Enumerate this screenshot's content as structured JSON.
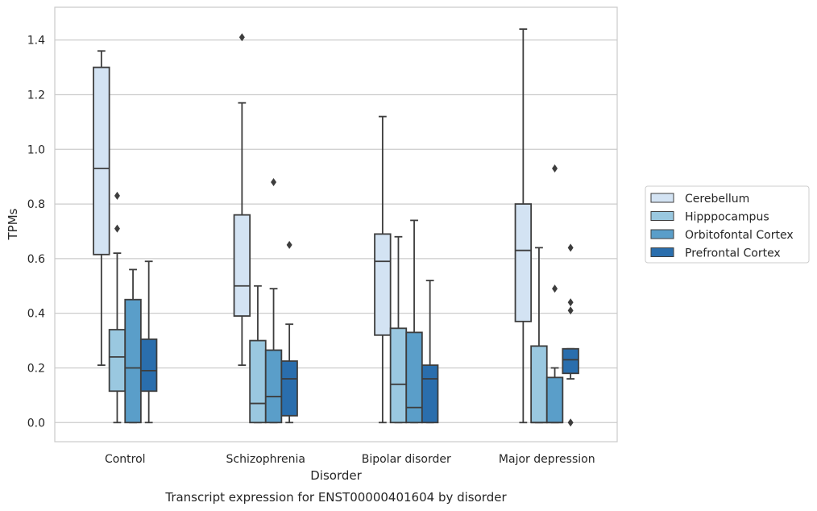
{
  "colors": {
    "background": "#ffffff",
    "grid": "#cccccc",
    "frame": "#cccccc",
    "box_edge": "#3d3d3d",
    "text": "#262626"
  },
  "chart_data": {
    "type": "box",
    "title": "",
    "caption": "Transcript expression for ENST00000401604 by disorder",
    "xlabel": "Disorder",
    "ylabel": "TPMs",
    "ylim": [
      -0.07,
      1.52
    ],
    "yticks": [
      0.0,
      0.2,
      0.4,
      0.6,
      0.8,
      1.0,
      1.2,
      1.4
    ],
    "ytick_labels": [
      "0.0",
      "0.2",
      "0.4",
      "0.6",
      "0.8",
      "1.0",
      "1.2",
      "1.4"
    ],
    "grid": "horizontal",
    "legend_position": "right",
    "categories": [
      "Control",
      "Schizophrenia",
      "Bipolar disorder",
      "Major depression"
    ],
    "series": [
      {
        "name": "Cerebellum",
        "color": "#d3e3f3",
        "boxes": [
          {
            "whisker_low": 0.21,
            "q1": 0.615,
            "median": 0.93,
            "q3": 1.3,
            "whisker_high": 1.36,
            "outliers": []
          },
          {
            "whisker_low": 0.21,
            "q1": 0.39,
            "median": 0.5,
            "q3": 0.76,
            "whisker_high": 1.17,
            "outliers": [
              1.41
            ]
          },
          {
            "whisker_low": 0.0,
            "q1": 0.32,
            "median": 0.59,
            "q3": 0.69,
            "whisker_high": 1.12,
            "outliers": []
          },
          {
            "whisker_low": 0.0,
            "q1": 0.37,
            "median": 0.63,
            "q3": 0.8,
            "whisker_high": 1.44,
            "outliers": []
          }
        ]
      },
      {
        "name": "Hipppocampus",
        "color": "#9ac8e0",
        "boxes": [
          {
            "whisker_low": 0.0,
            "q1": 0.115,
            "median": 0.24,
            "q3": 0.34,
            "whisker_high": 0.62,
            "outliers": [
              0.71,
              0.83
            ]
          },
          {
            "whisker_low": 0.0,
            "q1": 0.0,
            "median": 0.07,
            "q3": 0.3,
            "whisker_high": 0.5,
            "outliers": []
          },
          {
            "whisker_low": 0.0,
            "q1": 0.0,
            "median": 0.14,
            "q3": 0.345,
            "whisker_high": 0.68,
            "outliers": []
          },
          {
            "whisker_low": 0.0,
            "q1": 0.0,
            "median": 0.0,
            "q3": 0.28,
            "whisker_high": 0.64,
            "outliers": []
          }
        ]
      },
      {
        "name": "Orbitofontal Cortex",
        "color": "#5a9ec9",
        "boxes": [
          {
            "whisker_low": 0.0,
            "q1": 0.0,
            "median": 0.2,
            "q3": 0.45,
            "whisker_high": 0.56,
            "outliers": []
          },
          {
            "whisker_low": 0.0,
            "q1": 0.0,
            "median": 0.095,
            "q3": 0.265,
            "whisker_high": 0.49,
            "outliers": [
              0.88
            ]
          },
          {
            "whisker_low": 0.0,
            "q1": 0.0,
            "median": 0.055,
            "q3": 0.33,
            "whisker_high": 0.74,
            "outliers": []
          },
          {
            "whisker_low": 0.0,
            "q1": 0.0,
            "median": 0.0,
            "q3": 0.165,
            "whisker_high": 0.2,
            "outliers": [
              0.49,
              0.93
            ]
          }
        ]
      },
      {
        "name": "Prefrontal Cortex",
        "color": "#2a6ead",
        "boxes": [
          {
            "whisker_low": 0.0,
            "q1": 0.115,
            "median": 0.19,
            "q3": 0.305,
            "whisker_high": 0.59,
            "outliers": []
          },
          {
            "whisker_low": 0.0,
            "q1": 0.025,
            "median": 0.16,
            "q3": 0.225,
            "whisker_high": 0.36,
            "outliers": [
              0.65
            ]
          },
          {
            "whisker_low": 0.0,
            "q1": 0.0,
            "median": 0.16,
            "q3": 0.21,
            "whisker_high": 0.52,
            "outliers": []
          },
          {
            "whisker_low": 0.16,
            "q1": 0.18,
            "median": 0.23,
            "q3": 0.27,
            "whisker_high": 0.27,
            "outliers": [
              0.0,
              0.41,
              0.44,
              0.64
            ]
          }
        ]
      }
    ]
  }
}
